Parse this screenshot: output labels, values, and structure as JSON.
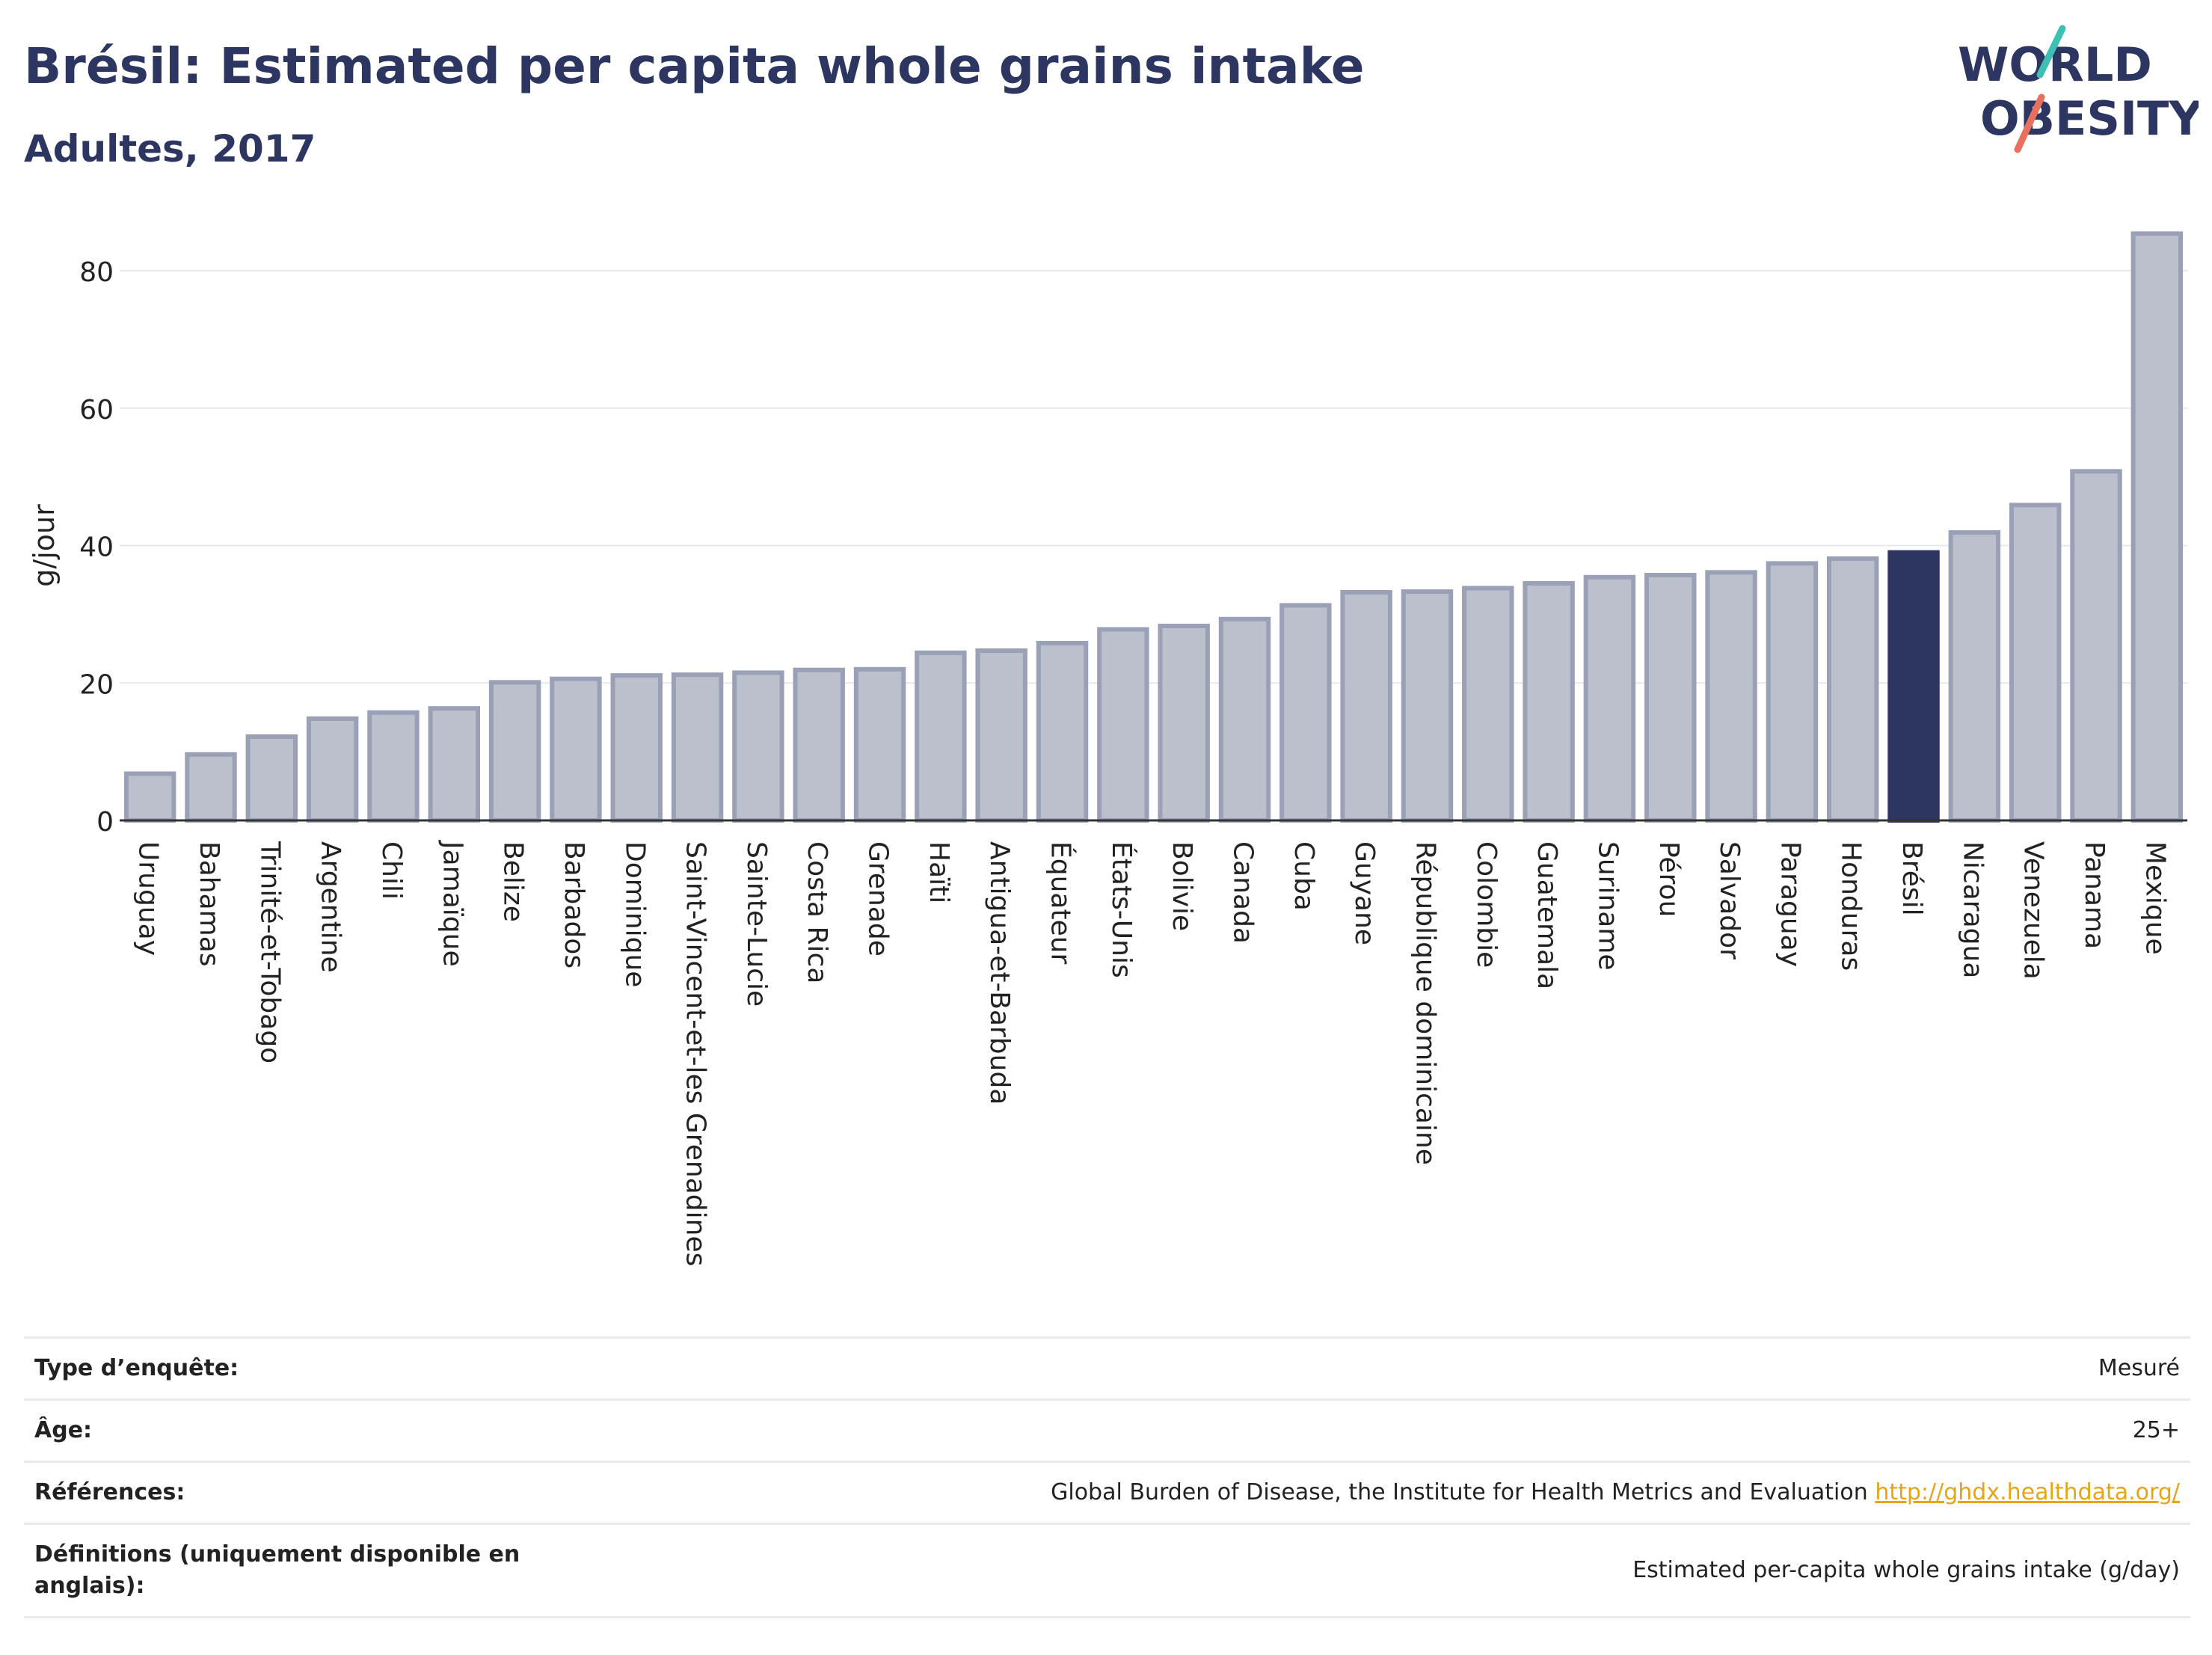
{
  "header": {
    "title": "Brésil: Estimated per capita whole grains intake",
    "subtitle": "Adultes, 2017"
  },
  "logo": {
    "line1": "WORLD",
    "line2": "OBESITY"
  },
  "colors": {
    "bar": "#bcc0cd",
    "bar_stroke": "#9aa0b6",
    "highlight": "#2d3561",
    "title": "#2d3561"
  },
  "chart_data": {
    "type": "bar",
    "ylabel": "g/jour",
    "ylim": [
      0,
      88
    ],
    "yticks": [
      0,
      20,
      40,
      60,
      80
    ],
    "grid": true,
    "highlight": "Brésil",
    "categories": [
      "Uruguay",
      "Bahamas",
      "Trinité-et-Tobago",
      "Argentine",
      "Chili",
      "Jamaïque",
      "Belize",
      "Barbados",
      "Dominique",
      "Saint-Vincent-et-les Grenadines",
      "Sainte-Lucie",
      "Costa Rica",
      "Grenade",
      "Haïti",
      "Antigua-et-Barbuda",
      "Équateur",
      "États-Unis",
      "Bolivie",
      "Canada",
      "Cuba",
      "Guyane",
      "République dominicaine",
      "Colombie",
      "Guatemala",
      "Suriname",
      "Pérou",
      "Salvador",
      "Paraguay",
      "Honduras",
      "Brésil",
      "Nicaragua",
      "Venezuela",
      "Panama",
      "Mexique"
    ],
    "values": [
      6.8,
      9.6,
      12.2,
      14.8,
      15.7,
      16.3,
      20.1,
      20.6,
      21.1,
      21.2,
      21.5,
      21.9,
      22.0,
      24.4,
      24.7,
      25.8,
      27.8,
      28.3,
      29.3,
      31.3,
      33.2,
      33.3,
      33.8,
      34.5,
      35.4,
      35.7,
      36.1,
      37.4,
      38.1,
      39.0,
      41.9,
      45.9,
      50.8,
      85.4
    ]
  },
  "info": {
    "rows": [
      {
        "label": "Type d’enquête:",
        "value": "Mesuré"
      },
      {
        "label": "Âge:",
        "value": "25+"
      },
      {
        "label": "Références:",
        "value": "Global Burden of Disease, the Institute for Health Metrics and Evaluation",
        "link": "http://ghdx.healthdata.org/"
      },
      {
        "label": "Définitions (uniquement disponible en anglais):",
        "value": "Estimated per-capita whole grains intake (g/day)"
      }
    ]
  }
}
